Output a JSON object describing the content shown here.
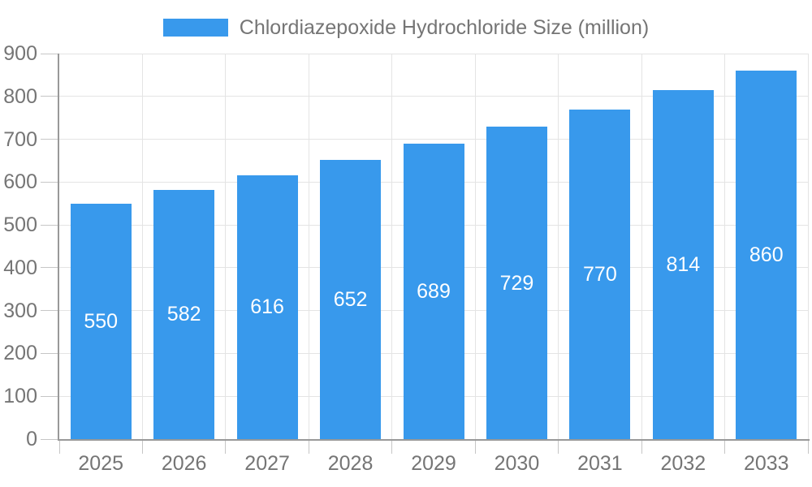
{
  "chart_data": {
    "type": "bar",
    "title": "Chlordiazepoxide Hydrochloride Size (million)",
    "legend": {
      "label": "Chlordiazepoxide Hydrochloride Size (million)",
      "position": "top"
    },
    "categories": [
      "2025",
      "2026",
      "2027",
      "2028",
      "2029",
      "2030",
      "2031",
      "2032",
      "2033"
    ],
    "series": [
      {
        "name": "Chlordiazepoxide Hydrochloride Size (million)",
        "values": [
          550,
          582,
          616,
          652,
          689,
          729,
          770,
          814,
          860
        ]
      }
    ],
    "bar_value_labels": [
      "550",
      "582",
      "616",
      "652",
      "689",
      "729",
      "770",
      "814",
      "860"
    ],
    "xlabel": "",
    "ylabel": "",
    "ylim": [
      0,
      900
    ],
    "y_ticks": [
      0,
      100,
      200,
      300,
      400,
      500,
      600,
      700,
      800,
      900
    ],
    "grid": true,
    "legend_position": "top",
    "colors": {
      "bar": "#3899EC",
      "bar_label": "#ffffff",
      "axis_text": "#757575",
      "legend_text": "#757575",
      "grid_line": "#e4e4e4",
      "tick_mark": "#c6c6c6",
      "axis_line": "#999999",
      "background": "#ffffff"
    }
  }
}
